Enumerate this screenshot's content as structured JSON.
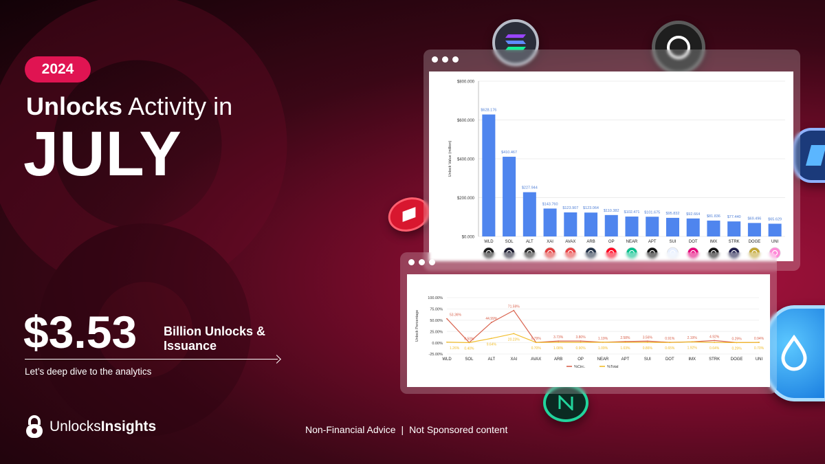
{
  "hero": {
    "year": "2024",
    "headline_bold": "Unlocks",
    "headline_rest": " Activity in",
    "month": "JULY",
    "amount": "$3.53",
    "amount_label": "Billion Unlocks & Issuance",
    "cta": "Let’s deep dive to the analytics"
  },
  "brand": {
    "name_regular": "Unlocks",
    "name_bold": "Insights"
  },
  "footer": {
    "left": "Non-Financial Advice",
    "separator": "|",
    "right": "Not Sponsored content"
  },
  "colors": {
    "accent": "#e01452",
    "bar": "#4f85ee",
    "circ_line": "#d9634e",
    "total_line": "#f1bd2a"
  },
  "chart_data": [
    {
      "type": "bar",
      "ylabel": "Unlock Value (million)",
      "ylim": [
        0,
        800
      ],
      "yticks": [
        "$0.000",
        "$200.000",
        "$400.000",
        "$600.000",
        "$800.000"
      ],
      "ytick_values": [
        0,
        200,
        400,
        600,
        800
      ],
      "categories": [
        "WLD",
        "SOL",
        "ALT",
        "XAI",
        "AVAX",
        "ARB",
        "OP",
        "NEAR",
        "APT",
        "SUI",
        "DOT",
        "IMX",
        "STRK",
        "DOGE",
        "UNI"
      ],
      "values": [
        628.176,
        410.467,
        227.944,
        143.76,
        123.907,
        123.064,
        110.382,
        102.471,
        101.675,
        95.832,
        92.664,
        81.836,
        77.44,
        69.496,
        65.629
      ],
      "value_labels": [
        "$628.176",
        "$410.467",
        "$227.944",
        "$143.760",
        "$123.907",
        "$123.064",
        "$110.382",
        "$102.471",
        "$101.675",
        "$95.832",
        "$92.664",
        "$81.836",
        "$77.440",
        "$69.496",
        "$65.629"
      ],
      "token_colors": [
        "#1a1a1a",
        "#1b1b2f",
        "#2a2a2a",
        "#e23c3c",
        "#e84142",
        "#213147",
        "#ff0420",
        "#00c08b",
        "#111111",
        "#e8f0ff",
        "#e6007a",
        "#111111",
        "#1c1c4a",
        "#c2a633",
        "#ff8ad8"
      ],
      "grid": true
    },
    {
      "type": "line",
      "ylabel": "Unlock Percentage",
      "ylim": [
        -25,
        100
      ],
      "yticks": [
        "-25.00%",
        "0.00%",
        "25.00%",
        "50.00%",
        "75.00%",
        "100.00%"
      ],
      "ytick_values": [
        -25,
        0,
        25,
        50,
        75,
        100
      ],
      "categories": [
        "WLD",
        "SOL",
        "ALT",
        "XAI",
        "AVAX",
        "ARB",
        "OP",
        "NEAR",
        "APT",
        "SUI",
        "DOT",
        "IMX",
        "STRK",
        "DOGE",
        "UNI"
      ],
      "series": [
        {
          "name": "%Circ.",
          "values": [
            53.36,
            0.5,
            44.99,
            71.59,
            0.79,
            3.73,
            3.8,
            1.19,
            2.58,
            3.56,
            0.91,
            2.19,
            4.92,
            0.29,
            0.94
          ],
          "labels": [
            "53.36%",
            "0.50%",
            "44.99%",
            "71.59%",
            "0.79%",
            "3.73%",
            "3.80%",
            "1.19%",
            "2.58%",
            "3.56%",
            "0.91%",
            "2.19%",
            "4.92%",
            "0.29%",
            "0.94%"
          ]
        },
        {
          "name": "%Total",
          "values": [
            1.26,
            0.4,
            9.64,
            20.23,
            0.7,
            1.08,
            0.9,
            1.09,
            1.03,
            0.86,
            0.65,
            1.92,
            0.64,
            0.29,
            0.7
          ],
          "labels": [
            "1.26%",
            "0.40%",
            "9.64%",
            "20.23%",
            "0.70%",
            "1.08%",
            "0.90%",
            "1.09%",
            "1.03%",
            "0.86%",
            "0.65%",
            "1.92%",
            "0.64%",
            "0.29%",
            "0.70%"
          ]
        }
      ],
      "legend_position": "bottom",
      "grid": true
    }
  ]
}
